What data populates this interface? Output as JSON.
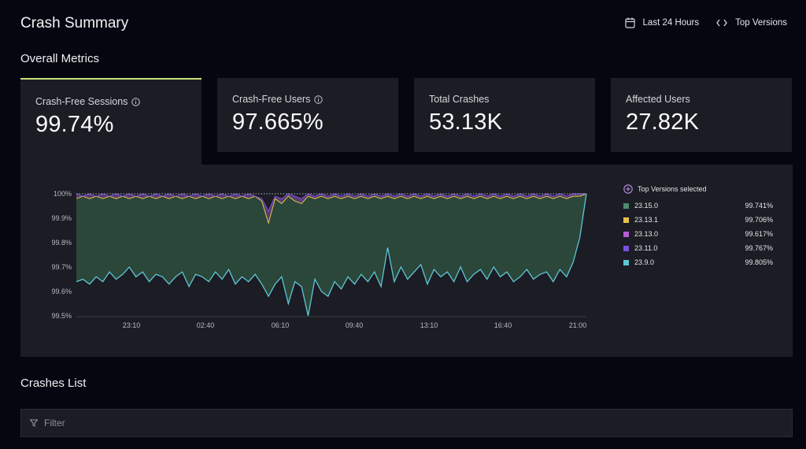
{
  "header": {
    "title": "Crash Summary",
    "date_range_label": "Last 24 Hours",
    "versions_label": "Top Versions"
  },
  "sections": {
    "overall_metrics": "Overall Metrics",
    "crashes_list": "Crashes List"
  },
  "metrics": [
    {
      "label": "Crash-Free Sessions",
      "value": "99.74%",
      "info": true
    },
    {
      "label": "Crash-Free Users",
      "value": "97.665%",
      "info": true
    },
    {
      "label": "Total Crashes",
      "value": "53.13K",
      "info": false
    },
    {
      "label": "Affected Users",
      "value": "27.82K",
      "info": false
    }
  ],
  "legend": {
    "header": "Top Versions selected",
    "items": [
      {
        "version": "23.15.0",
        "value": "99.741%",
        "color": "#4f8a6e"
      },
      {
        "version": "23.13.1",
        "value": "99.706%",
        "color": "#e6c14a"
      },
      {
        "version": "23.13.0",
        "value": "99.617%",
        "color": "#b45cd8"
      },
      {
        "version": "23.11.0",
        "value": "99.767%",
        "color": "#7c4fe0"
      },
      {
        "version": "23.9.0",
        "value": "99.805%",
        "color": "#5fc6d6"
      }
    ]
  },
  "chart_data": {
    "type": "area",
    "y_ticks": [
      "100%",
      "99.9%",
      "99.8%",
      "99.7%",
      "99.6%",
      "99.5%"
    ],
    "x_ticks": [
      "23:10",
      "02:40",
      "06:10",
      "09:40",
      "13:10",
      "16:40",
      "21:00"
    ],
    "ylim": [
      99.5,
      100.0
    ],
    "series": [
      {
        "name": "23.9.0",
        "color": "#5fc6d6",
        "values": [
          99.64,
          99.65,
          99.63,
          99.66,
          99.64,
          99.68,
          99.65,
          99.67,
          99.7,
          99.66,
          99.68,
          99.64,
          99.67,
          99.66,
          99.63,
          99.66,
          99.68,
          99.62,
          99.67,
          99.66,
          99.64,
          99.68,
          99.65,
          99.69,
          99.63,
          99.66,
          99.64,
          99.67,
          99.63,
          99.58,
          99.63,
          99.66,
          99.55,
          99.64,
          99.62,
          99.5,
          99.65,
          99.6,
          99.58,
          99.64,
          99.61,
          99.66,
          99.63,
          99.67,
          99.64,
          99.68,
          99.62,
          99.78,
          99.64,
          99.7,
          99.65,
          99.68,
          99.71,
          99.63,
          99.69,
          99.66,
          99.68,
          99.64,
          99.7,
          99.64,
          99.67,
          99.69,
          99.65,
          99.7,
          99.66,
          99.68,
          99.64,
          99.66,
          99.69,
          99.65,
          99.67,
          99.68,
          99.64,
          99.69,
          99.66,
          99.72,
          99.82,
          100.0
        ]
      },
      {
        "name": "23.13.1",
        "color": "#e6c14a",
        "values": [
          99.98,
          99.99,
          99.98,
          99.99,
          99.98,
          99.99,
          99.98,
          99.99,
          99.98,
          99.99,
          99.98,
          99.99,
          99.98,
          99.99,
          99.98,
          99.99,
          99.98,
          99.99,
          99.98,
          99.99,
          99.98,
          99.99,
          99.98,
          99.99,
          99.98,
          99.99,
          99.98,
          99.99,
          99.97,
          99.88,
          99.98,
          99.96,
          99.99,
          99.97,
          99.96,
          99.99,
          99.98,
          99.99,
          99.98,
          99.99,
          99.98,
          99.99,
          99.98,
          99.99,
          99.98,
          99.99,
          99.98,
          99.99,
          99.98,
          99.99,
          99.98,
          99.99,
          99.98,
          99.99,
          99.98,
          99.99,
          99.98,
          99.99,
          99.98,
          99.99,
          99.98,
          99.99,
          99.98,
          99.99,
          99.98,
          99.99,
          99.98,
          99.99,
          99.98,
          99.99,
          99.98,
          99.99,
          99.98,
          99.99,
          99.98,
          99.99,
          99.99,
          100.0
        ]
      },
      {
        "name": "23.11.0",
        "color": "#7c4fe0",
        "values": [
          100.0,
          99.99,
          100.0,
          99.99,
          100.0,
          99.99,
          100.0,
          99.99,
          100.0,
          99.99,
          100.0,
          99.99,
          100.0,
          99.99,
          100.0,
          99.99,
          100.0,
          99.99,
          100.0,
          99.99,
          100.0,
          99.99,
          100.0,
          99.99,
          100.0,
          99.99,
          100.0,
          99.99,
          99.98,
          99.93,
          99.99,
          99.98,
          100.0,
          99.99,
          99.98,
          100.0,
          99.99,
          100.0,
          99.99,
          100.0,
          99.99,
          100.0,
          99.99,
          100.0,
          99.99,
          100.0,
          99.99,
          100.0,
          99.99,
          100.0,
          99.99,
          100.0,
          99.99,
          100.0,
          99.99,
          100.0,
          99.99,
          100.0,
          99.99,
          100.0,
          99.99,
          100.0,
          99.99,
          100.0,
          99.99,
          100.0,
          99.99,
          100.0,
          99.99,
          100.0,
          99.99,
          100.0,
          99.99,
          100.0,
          99.99,
          100.0,
          100.0,
          100.0
        ]
      }
    ]
  }
}
